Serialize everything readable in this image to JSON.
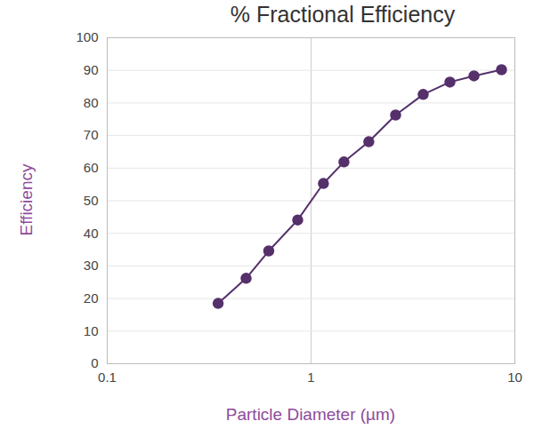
{
  "chart_data": {
    "type": "line",
    "title": "% Fractional Efficiency",
    "x_label": "Particle Diameter (µm)",
    "y_label": "Efficiency",
    "x": [
      0.35,
      0.48,
      0.62,
      0.86,
      1.15,
      1.45,
      1.92,
      2.6,
      3.55,
      4.8,
      6.3,
      8.6
    ],
    "values": [
      18.5,
      26.2,
      34.6,
      44.1,
      55.3,
      61.9,
      68.1,
      76.3,
      82.6,
      86.4,
      88.3,
      90.2
    ],
    "color": "#55306b",
    "marker": "circle",
    "line_style": "solid",
    "log": "x",
    "xlim": [
      0.1,
      10
    ],
    "xticks": [
      0.1,
      1,
      10
    ],
    "ylim": [
      0,
      100
    ],
    "yticks": [
      0,
      10,
      20,
      30,
      40,
      50,
      60,
      70,
      80,
      90,
      100
    ],
    "grid": true
  }
}
